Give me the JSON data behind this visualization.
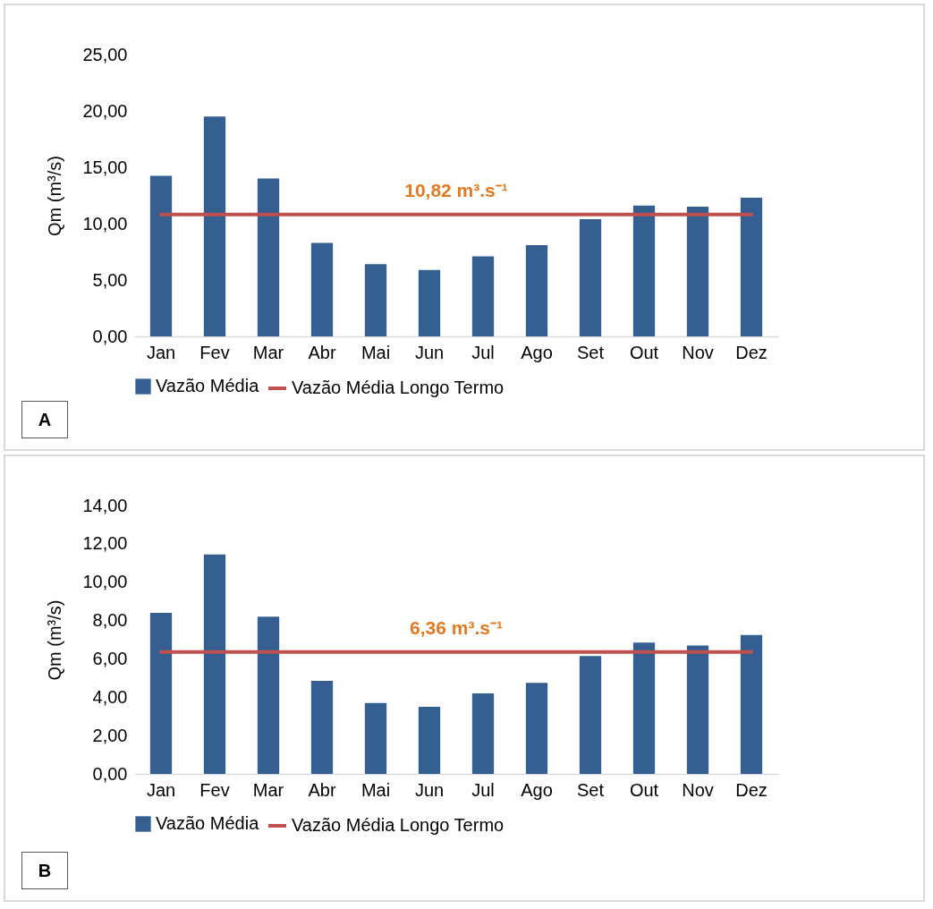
{
  "chart_data": [
    {
      "type": "bar",
      "ylabel": "Qm (m³/s)",
      "categories": [
        "Jan",
        "Fev",
        "Mar",
        "Abr",
        "Mai",
        "Jun",
        "Jul",
        "Ago",
        "Set",
        "Out",
        "Nov",
        "Dez"
      ],
      "series": [
        {
          "name": "Vazão Média",
          "color": "#355f91",
          "values": [
            14.25,
            19.5,
            14.0,
            8.3,
            6.4,
            5.9,
            7.1,
            8.1,
            10.4,
            11.6,
            11.5,
            12.3
          ]
        },
        {
          "name": "Vazão Média Longo Termo",
          "type": "line",
          "color": "#c0504d",
          "values": [
            10.82,
            10.82,
            10.82,
            10.82,
            10.82,
            10.82,
            10.82,
            10.82,
            10.82,
            10.82,
            10.82,
            10.82
          ]
        }
      ],
      "ylim": [
        0,
        25
      ],
      "yticks": [
        {
          "value": 0,
          "label": "0,00"
        },
        {
          "value": 5,
          "label": "5,00"
        },
        {
          "value": 10,
          "label": "10,00"
        },
        {
          "value": 15,
          "label": "15,00"
        },
        {
          "value": 20,
          "label": "20,00"
        },
        {
          "value": 25,
          "label": "25,00"
        }
      ],
      "annotations": [
        "10,82 m³.s⁻¹",
        "A"
      ],
      "grid": false,
      "legend": "bottom"
    },
    {
      "type": "bar",
      "ylabel": "Qm (m³/s)",
      "categories": [
        "Jan",
        "Fev",
        "Mar",
        "Abr",
        "Mai",
        "Jun",
        "Jul",
        "Ago",
        "Set",
        "Out",
        "Nov",
        "Dez"
      ],
      "series": [
        {
          "name": "Vazão Média",
          "color": "#355f91",
          "values": [
            8.4,
            11.45,
            8.2,
            4.85,
            3.7,
            3.5,
            4.2,
            4.75,
            6.15,
            6.85,
            6.7,
            7.25
          ]
        },
        {
          "name": "Vazão Média Longo Termo",
          "type": "line",
          "color": "#c0504d",
          "values": [
            6.36,
            6.36,
            6.36,
            6.36,
            6.36,
            6.36,
            6.36,
            6.36,
            6.36,
            6.36,
            6.36,
            6.36
          ]
        }
      ],
      "ylim": [
        0,
        14
      ],
      "yticks": [
        {
          "value": 0,
          "label": "0,00"
        },
        {
          "value": 2,
          "label": "2,00"
        },
        {
          "value": 4,
          "label": "4,00"
        },
        {
          "value": 6,
          "label": "6,00"
        },
        {
          "value": 8,
          "label": "8,00"
        },
        {
          "value": 10,
          "label": "10,00"
        },
        {
          "value": 12,
          "label": "12,00"
        },
        {
          "value": 14,
          "label": "14,00"
        }
      ],
      "annotations": [
        "6,36 m³.s⁻¹",
        "B"
      ],
      "grid": false,
      "legend": "bottom"
    }
  ]
}
